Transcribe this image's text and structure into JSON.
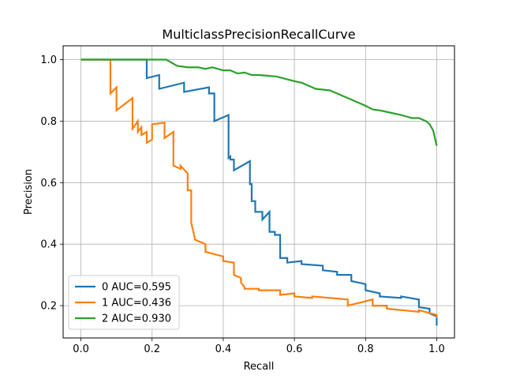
{
  "chart_data": {
    "type": "line",
    "title": "MulticlassPrecisionRecallCurve",
    "xlabel": "Recall",
    "ylabel": "Precision",
    "xlim": [
      -0.05,
      1.05
    ],
    "ylim": [
      0.095,
      1.045
    ],
    "grid": true,
    "legend_position": "lower-left",
    "xticks": [
      0.0,
      0.2,
      0.4,
      0.6,
      0.8,
      1.0
    ],
    "yticks": [
      0.2,
      0.4,
      0.6,
      0.8,
      1.0
    ],
    "xtick_labels": [
      "0.0",
      "0.2",
      "0.4",
      "0.6",
      "0.8",
      "1.0"
    ],
    "ytick_labels": [
      "0.2",
      "0.4",
      "0.6",
      "0.8",
      "1.0"
    ],
    "series": [
      {
        "name": "0 AUC=0.595",
        "color": "#1f77b4",
        "x": [
          0.0,
          0.185,
          0.185,
          0.22,
          0.22,
          0.29,
          0.29,
          0.36,
          0.36,
          0.375,
          0.375,
          0.415,
          0.415,
          0.42,
          0.42,
          0.43,
          0.43,
          0.475,
          0.475,
          0.48,
          0.48,
          0.49,
          0.49,
          0.51,
          0.51,
          0.53,
          0.53,
          0.545,
          0.545,
          0.56,
          0.56,
          0.58,
          0.58,
          0.62,
          0.62,
          0.68,
          0.68,
          0.72,
          0.72,
          0.76,
          0.76,
          0.8,
          0.8,
          0.84,
          0.84,
          0.9,
          0.9,
          0.95,
          0.95,
          0.98,
          0.98,
          1.0,
          1.0
        ],
        "y": [
          1.0,
          1.0,
          0.94,
          0.95,
          0.905,
          0.925,
          0.895,
          0.91,
          0.89,
          0.89,
          0.8,
          0.82,
          0.68,
          0.685,
          0.675,
          0.675,
          0.64,
          0.67,
          0.595,
          0.595,
          0.54,
          0.54,
          0.505,
          0.505,
          0.48,
          0.505,
          0.44,
          0.44,
          0.43,
          0.43,
          0.355,
          0.355,
          0.34,
          0.345,
          0.335,
          0.33,
          0.315,
          0.31,
          0.3,
          0.3,
          0.28,
          0.27,
          0.25,
          0.24,
          0.23,
          0.225,
          0.23,
          0.22,
          0.195,
          0.19,
          0.175,
          0.165,
          0.135
        ]
      },
      {
        "name": "1 AUC=0.436",
        "color": "#ff7f0e",
        "x": [
          0.0,
          0.083,
          0.083,
          0.1,
          0.1,
          0.145,
          0.145,
          0.16,
          0.16,
          0.17,
          0.17,
          0.185,
          0.185,
          0.2,
          0.2,
          0.235,
          0.235,
          0.26,
          0.26,
          0.28,
          0.28,
          0.3,
          0.3,
          0.31,
          0.31,
          0.32,
          0.32,
          0.35,
          0.35,
          0.4,
          0.4,
          0.43,
          0.43,
          0.45,
          0.45,
          0.46,
          0.46,
          0.5,
          0.5,
          0.56,
          0.56,
          0.6,
          0.6,
          0.65,
          0.65,
          0.75,
          0.75,
          0.82,
          0.82,
          0.86,
          0.86,
          0.95,
          0.95,
          1.0,
          1.0
        ],
        "y": [
          1.0,
          1.0,
          0.89,
          0.91,
          0.835,
          0.875,
          0.775,
          0.8,
          0.765,
          0.78,
          0.755,
          0.765,
          0.73,
          0.74,
          0.79,
          0.795,
          0.745,
          0.765,
          0.655,
          0.645,
          0.655,
          0.63,
          0.575,
          0.575,
          0.47,
          0.42,
          0.415,
          0.4,
          0.375,
          0.36,
          0.345,
          0.34,
          0.3,
          0.29,
          0.275,
          0.26,
          0.255,
          0.255,
          0.25,
          0.25,
          0.235,
          0.24,
          0.23,
          0.225,
          0.23,
          0.22,
          0.2,
          0.22,
          0.2,
          0.2,
          0.19,
          0.18,
          0.185,
          0.17,
          0.16
        ]
      },
      {
        "name": "2 AUC=0.930",
        "color": "#2ca02c",
        "x": [
          0.0,
          0.24,
          0.27,
          0.3,
          0.33,
          0.35,
          0.37,
          0.4,
          0.42,
          0.44,
          0.46,
          0.48,
          0.5,
          0.52,
          0.55,
          0.6,
          0.62,
          0.64,
          0.66,
          0.7,
          0.72,
          0.74,
          0.76,
          0.78,
          0.8,
          0.82,
          0.84,
          0.86,
          0.9,
          0.93,
          0.95,
          0.97,
          0.98,
          0.99,
          1.0
        ],
        "y": [
          1.0,
          1.0,
          0.98,
          0.975,
          0.975,
          0.97,
          0.975,
          0.965,
          0.965,
          0.955,
          0.958,
          0.95,
          0.95,
          0.948,
          0.945,
          0.93,
          0.925,
          0.915,
          0.905,
          0.9,
          0.89,
          0.88,
          0.87,
          0.86,
          0.85,
          0.838,
          0.835,
          0.83,
          0.82,
          0.81,
          0.81,
          0.8,
          0.79,
          0.77,
          0.72
        ]
      }
    ]
  }
}
